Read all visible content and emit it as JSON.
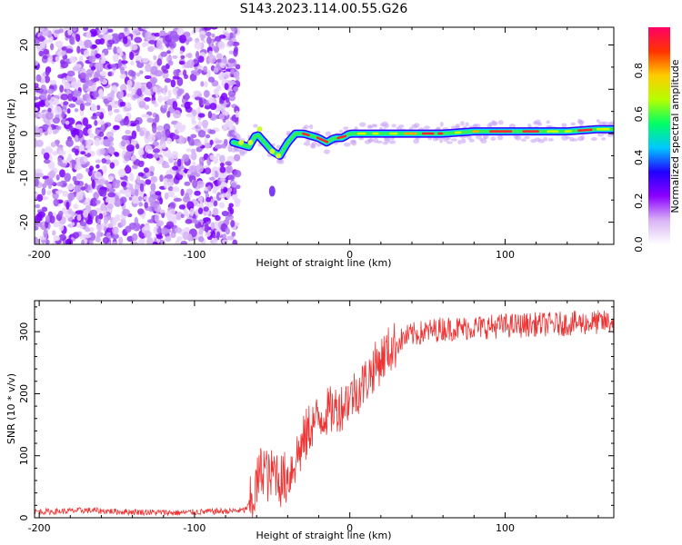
{
  "title": "S143.2023.114.00.55.G26",
  "chart_data": [
    {
      "type": "heatmap",
      "xlabel": "Height of straight line (km)",
      "ylabel": "Frequency (Hz)",
      "xlim": [
        -203,
        170
      ],
      "ylim": [
        -25,
        24
      ],
      "xticks": [
        -200,
        -100,
        0,
        100
      ],
      "yticks": [
        -20,
        -10,
        0,
        10,
        20
      ],
      "colorbar": {
        "label": "Normalized spectral amplitude",
        "range": [
          0,
          1
        ],
        "ticks": [
          "0.0",
          "0.2",
          "0.4",
          "0.6",
          "0.8"
        ],
        "colormap": [
          "#ffffff",
          "#d9b3f5",
          "#8b00ff",
          "#2200ff",
          "#00c8ff",
          "#00ff66",
          "#b4ff00",
          "#ffcc00",
          "#ff3300",
          "#ff0066"
        ]
      },
      "features": {
        "broadband_noise_x_range": [
          -203,
          -72
        ],
        "trace_centerline": [
          [
            -75,
            -2
          ],
          [
            -65,
            -3
          ],
          [
            -60,
            0
          ],
          [
            -55,
            -2
          ],
          [
            -50,
            -4
          ],
          [
            -45,
            -5
          ],
          [
            -40,
            -2
          ],
          [
            -35,
            0
          ],
          [
            -30,
            0
          ],
          [
            -20,
            -1
          ],
          [
            -15,
            -2
          ],
          [
            -10,
            -1
          ],
          [
            -5,
            -1
          ],
          [
            0,
            0
          ],
          [
            20,
            0
          ],
          [
            40,
            0
          ],
          [
            60,
            0
          ],
          [
            80,
            0.5
          ],
          [
            100,
            0.5
          ],
          [
            120,
            0.5
          ],
          [
            140,
            0.5
          ],
          [
            160,
            1
          ],
          [
            170,
            1
          ]
        ],
        "isolated_blob": [
          -50,
          -13
        ]
      }
    },
    {
      "type": "line",
      "xlabel": "Height of straight line (km)",
      "ylabel": "SNR (10 * v/v)",
      "xlim": [
        -203,
        170
      ],
      "ylim": [
        0,
        350
      ],
      "xticks": [
        -200,
        -100,
        0,
        100
      ],
      "yticks": [
        0,
        100,
        200,
        300
      ],
      "color": "#ee3333",
      "series": [
        {
          "x": [
            -203,
            -190,
            -170,
            -150,
            -130,
            -110,
            -90,
            -75,
            -68,
            -63,
            -58,
            -55,
            -52,
            -48,
            -45,
            -40,
            -35,
            -30,
            -25,
            -20,
            -15,
            -10,
            -5,
            0,
            5,
            10,
            15,
            20,
            25,
            30,
            35,
            40,
            50,
            60,
            70,
            80,
            90,
            100,
            110,
            120,
            130,
            140,
            150,
            160,
            170
          ],
          "values": [
            10,
            10,
            12,
            10,
            9,
            8,
            10,
            11,
            12,
            25,
            70,
            85,
            60,
            80,
            60,
            65,
            95,
            120,
            150,
            160,
            170,
            175,
            180,
            195,
            205,
            220,
            240,
            255,
            270,
            280,
            290,
            295,
            300,
            305,
            305,
            307,
            308,
            310,
            310,
            312,
            312,
            313,
            314,
            315,
            315
          ]
        }
      ]
    }
  ]
}
